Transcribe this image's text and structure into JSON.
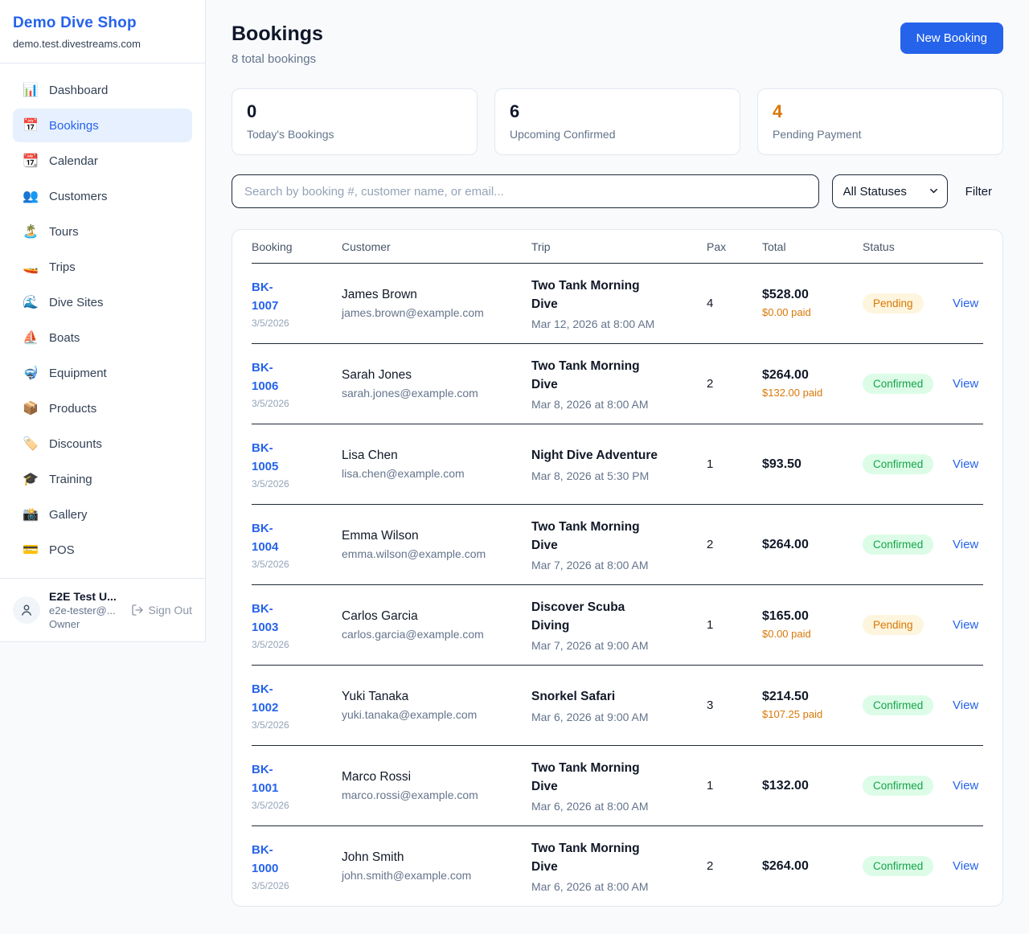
{
  "app": {
    "name": "Demo Dive Shop",
    "domain": "demo.test.divestreams.com"
  },
  "sidebar": {
    "items": [
      {
        "icon": "📊",
        "label": "Dashboard",
        "active": false
      },
      {
        "icon": "📅",
        "label": "Bookings",
        "active": true
      },
      {
        "icon": "📆",
        "label": "Calendar",
        "active": false
      },
      {
        "icon": "👥",
        "label": "Customers",
        "active": false
      },
      {
        "icon": "🏝️",
        "label": "Tours",
        "active": false
      },
      {
        "icon": "🚤",
        "label": "Trips",
        "active": false
      },
      {
        "icon": "🌊",
        "label": "Dive Sites",
        "active": false
      },
      {
        "icon": "⛵",
        "label": "Boats",
        "active": false
      },
      {
        "icon": "🤿",
        "label": "Equipment",
        "active": false
      },
      {
        "icon": "📦",
        "label": "Products",
        "active": false
      },
      {
        "icon": "🏷️",
        "label": "Discounts",
        "active": false
      },
      {
        "icon": "🎓",
        "label": "Training",
        "active": false
      },
      {
        "icon": "📸",
        "label": "Gallery",
        "active": false
      },
      {
        "icon": "💳",
        "label": "POS",
        "active": false
      }
    ],
    "user": {
      "name": "E2E Test U...",
      "email": "e2e-tester@...",
      "role": "Owner",
      "sign_out_label": "Sign Out"
    }
  },
  "header": {
    "title": "Bookings",
    "subtitle": "8 total bookings",
    "new_booking_label": "New Booking"
  },
  "stats": [
    {
      "value": "0",
      "label": "Today's Bookings",
      "accent": false
    },
    {
      "value": "6",
      "label": "Upcoming Confirmed",
      "accent": false
    },
    {
      "value": "4",
      "label": "Pending Payment",
      "accent": true
    }
  ],
  "filters": {
    "search_placeholder": "Search by booking #, customer name, or email...",
    "status_selected": "All Statuses",
    "filter_label": "Filter"
  },
  "table": {
    "columns": [
      "Booking",
      "Customer",
      "Trip",
      "Pax",
      "Total",
      "Status",
      ""
    ],
    "rows": [
      {
        "booking_id": "BK-1007",
        "booking_date": "3/5/2026",
        "customer_name": "James Brown",
        "customer_email": "james.brown@example.com",
        "trip_name": "Two Tank Morning Dive",
        "trip_datetime": "Mar 12, 2026 at 8:00 AM",
        "pax": "4",
        "total": "$528.00",
        "paid_note": "$0.00 paid",
        "status": "Pending",
        "action_label": "View"
      },
      {
        "booking_id": "BK-1006",
        "booking_date": "3/5/2026",
        "customer_name": "Sarah Jones",
        "customer_email": "sarah.jones@example.com",
        "trip_name": "Two Tank Morning Dive",
        "trip_datetime": "Mar 8, 2026 at 8:00 AM",
        "pax": "2",
        "total": "$264.00",
        "paid_note": "$132.00 paid",
        "status": "Confirmed",
        "action_label": "View"
      },
      {
        "booking_id": "BK-1005",
        "booking_date": "3/5/2026",
        "customer_name": "Lisa Chen",
        "customer_email": "lisa.chen@example.com",
        "trip_name": "Night Dive Adventure",
        "trip_datetime": "Mar 8, 2026 at 5:30 PM",
        "pax": "1",
        "total": "$93.50",
        "paid_note": "",
        "status": "Confirmed",
        "action_label": "View"
      },
      {
        "booking_id": "BK-1004",
        "booking_date": "3/5/2026",
        "customer_name": "Emma Wilson",
        "customer_email": "emma.wilson@example.com",
        "trip_name": "Two Tank Morning Dive",
        "trip_datetime": "Mar 7, 2026 at 8:00 AM",
        "pax": "2",
        "total": "$264.00",
        "paid_note": "",
        "status": "Confirmed",
        "action_label": "View"
      },
      {
        "booking_id": "BK-1003",
        "booking_date": "3/5/2026",
        "customer_name": "Carlos Garcia",
        "customer_email": "carlos.garcia@example.com",
        "trip_name": "Discover Scuba Diving",
        "trip_datetime": "Mar 7, 2026 at 9:00 AM",
        "pax": "1",
        "total": "$165.00",
        "paid_note": "$0.00 paid",
        "status": "Pending",
        "action_label": "View"
      },
      {
        "booking_id": "BK-1002",
        "booking_date": "3/5/2026",
        "customer_name": "Yuki Tanaka",
        "customer_email": "yuki.tanaka@example.com",
        "trip_name": "Snorkel Safari",
        "trip_datetime": "Mar 6, 2026 at 9:00 AM",
        "pax": "3",
        "total": "$214.50",
        "paid_note": "$107.25 paid",
        "status": "Confirmed",
        "action_label": "View"
      },
      {
        "booking_id": "BK-1001",
        "booking_date": "3/5/2026",
        "customer_name": "Marco Rossi",
        "customer_email": "marco.rossi@example.com",
        "trip_name": "Two Tank Morning Dive",
        "trip_datetime": "Mar 6, 2026 at 8:00 AM",
        "pax": "1",
        "total": "$132.00",
        "paid_note": "",
        "status": "Confirmed",
        "action_label": "View"
      },
      {
        "booking_id": "BK-1000",
        "booking_date": "3/5/2026",
        "customer_name": "John Smith",
        "customer_email": "john.smith@example.com",
        "trip_name": "Two Tank Morning Dive",
        "trip_datetime": "Mar 6, 2026 at 8:00 AM",
        "pax": "2",
        "total": "$264.00",
        "paid_note": "",
        "status": "Confirmed",
        "action_label": "View"
      }
    ]
  },
  "colors": {
    "brand_blue": "#2563eb",
    "accent_orange": "#d97706",
    "pending_bg": "#fdf5dd",
    "confirmed_green": "#16a34a",
    "confirmed_bg": "#dcfce7",
    "page_bg": "#f8fafc"
  }
}
